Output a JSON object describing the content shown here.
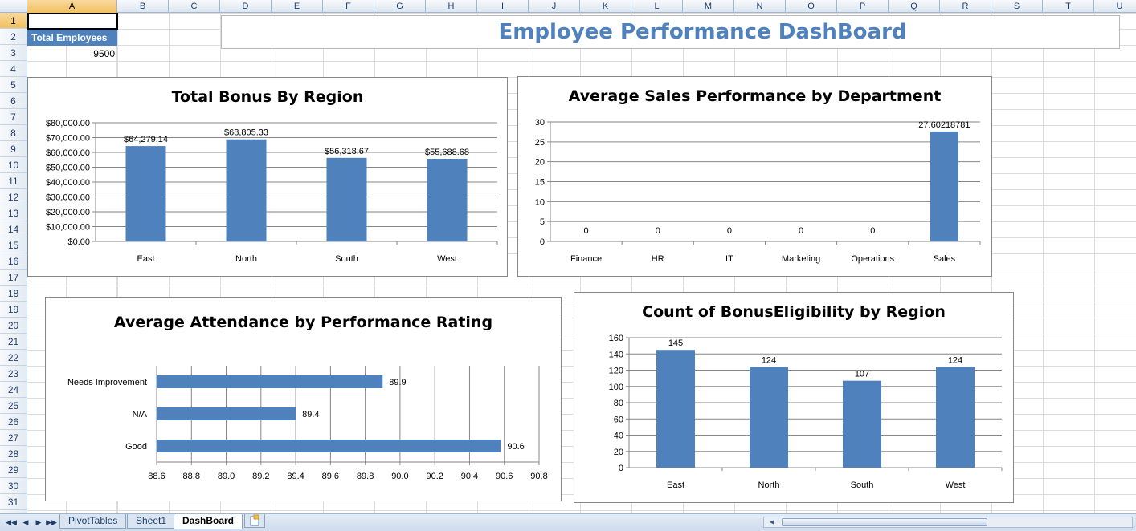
{
  "sheet": {
    "columns": [
      "A",
      "B",
      "C",
      "D",
      "E",
      "F",
      "G",
      "H",
      "I",
      "J",
      "K",
      "L",
      "M",
      "N",
      "O",
      "P",
      "Q",
      "R",
      "S",
      "T",
      "U"
    ],
    "rows": [
      "1",
      "2",
      "3",
      "4",
      "5",
      "6",
      "7",
      "8",
      "9",
      "10",
      "11",
      "12",
      "13",
      "14",
      "15",
      "16",
      "17",
      "18",
      "19",
      "20",
      "21",
      "22",
      "23",
      "24",
      "25",
      "26",
      "27",
      "28",
      "29",
      "30",
      "31"
    ],
    "selected_column": "A",
    "selected_row": "1",
    "cells": {
      "a2_label": "Total Employees",
      "a3_value": "9500"
    },
    "colors": {
      "header_fill": "#4f81bd",
      "title_color": "#4f81bd",
      "bar_color": "#4f81bd"
    }
  },
  "dashboard": {
    "title": "Employee Performance DashBoard"
  },
  "chart_data": [
    {
      "type": "bar",
      "title": "Total Bonus By Region",
      "categories": [
        "East",
        "North",
        "South",
        "West"
      ],
      "values": [
        64279.14,
        68805.33,
        56318.67,
        55688.68
      ],
      "data_labels": [
        "$64,279.14",
        "$68,805.33",
        "$56,318.67",
        "$55,688.68"
      ],
      "ylim": [
        0,
        80000
      ],
      "y_ticks": [
        "$0.00",
        "$10,000.00",
        "$20,000.00",
        "$30,000.00",
        "$40,000.00",
        "$50,000.00",
        "$60,000.00",
        "$70,000.00",
        "$80,000.00"
      ],
      "grid": true
    },
    {
      "type": "bar",
      "title": "Average Sales Performance by Department",
      "categories": [
        "Finance",
        "HR",
        "IT",
        "Marketing",
        "Operations",
        "Sales"
      ],
      "values": [
        0,
        0,
        0,
        0,
        0,
        27.60218781
      ],
      "data_labels": [
        "0",
        "0",
        "0",
        "0",
        "0",
        "27.60218781"
      ],
      "ylim": [
        0,
        30
      ],
      "y_ticks": [
        "0",
        "5",
        "10",
        "15",
        "20",
        "25",
        "30"
      ],
      "grid": true
    },
    {
      "type": "bar",
      "orientation": "horizontal",
      "title": "Average Attendance by Performance Rating",
      "categories": [
        "Needs Improvement",
        "N/A",
        "Good"
      ],
      "values": [
        89.9,
        89.4,
        90.58
      ],
      "data_labels": [
        "89.9",
        "89.4",
        "90.6"
      ],
      "xlim": [
        88.6,
        90.8
      ],
      "x_ticks": [
        "88.6",
        "88.8",
        "89.0",
        "89.2",
        "89.4",
        "89.6",
        "89.8",
        "90.0",
        "90.2",
        "90.4",
        "90.6",
        "90.8"
      ],
      "grid": true
    },
    {
      "type": "bar",
      "title": "Count of BonusEligibility by Region",
      "categories": [
        "East",
        "North",
        "South",
        "West"
      ],
      "values": [
        145,
        124,
        107,
        124
      ],
      "data_labels": [
        "145",
        "124",
        "107",
        "124"
      ],
      "ylim": [
        0,
        160
      ],
      "y_ticks": [
        "0",
        "20",
        "40",
        "60",
        "80",
        "100",
        "120",
        "140",
        "160"
      ],
      "grid": true
    }
  ],
  "tabs": {
    "items": [
      "PivotTables",
      "Sheet1",
      "DashBoard"
    ],
    "active": "DashBoard"
  },
  "icons": {
    "nav_first": "◀◀",
    "nav_prev": "◀",
    "nav_next": "▶",
    "nav_last": "▶▶"
  }
}
